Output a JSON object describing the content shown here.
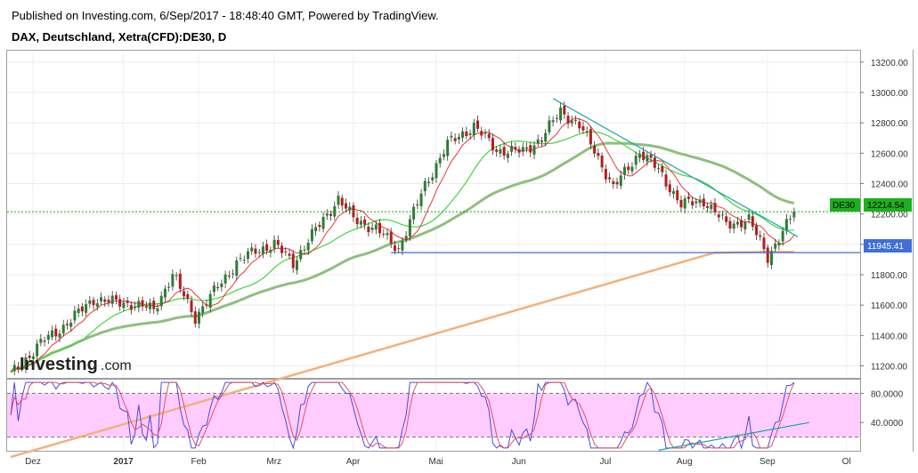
{
  "header": {
    "published": "Published on Investing.com, 6/Sep/2017 - 18:48:40 GMT, Powered by TradingView.",
    "symbol": "DAX, Deutschland, Xetra(CFD):DE30, D"
  },
  "watermark": {
    "brand": "Investing",
    "suffix": ".com"
  },
  "colors": {
    "up": "#2e7d32",
    "down": "#b71c1c",
    "sma_fast": "#e53935",
    "sma_mid": "#43d63f",
    "sma_slow": "#8fbf7f",
    "sma_long": "#f4b07a",
    "trendline": "#1ea4a4",
    "support": "#3f6fd8",
    "price_line": "#1a9e1a",
    "stoch_k": "#4b4bdc",
    "stoch_d": "#e0506a",
    "stoch_band": "#ffccff"
  },
  "price_labels": {
    "current_tag": "DE30",
    "current_value": "12214.54",
    "support_value": "11945.41"
  },
  "chart_data": [
    {
      "type": "line",
      "subtype": "candlestick",
      "title": "DAX, Deutschland, Xetra(CFD):DE30, D",
      "x_ticks": [
        "Dez",
        "2017",
        "Feb",
        "Mrz",
        "Apr",
        "Mai",
        "Jun",
        "Jul",
        "Aug",
        "Sep",
        "Ol"
      ],
      "y_ticks": [
        "13200.00",
        "13000.00",
        "12800.00",
        "12600.00",
        "12400.00",
        "12200.00",
        "12000.00",
        "11800.00",
        "11600.00",
        "11400.00",
        "11200.00"
      ],
      "ylim": [
        11080,
        13240
      ],
      "grid": true,
      "horizontal_lines": [
        {
          "value": 12214.54,
          "label": "DE30 12214.54",
          "style": "dotted"
        },
        {
          "value": 11945.41,
          "label": "11945.41",
          "style": "solid"
        }
      ],
      "trendline": [
        {
          "day": 144,
          "value": 12960
        },
        {
          "day": 209,
          "value": 12050
        }
      ],
      "support_start_day": 101,
      "series": []
    },
    {
      "type": "line",
      "title": "",
      "y_ticks": [
        "80.0000",
        "40.0000"
      ],
      "ylim": [
        0,
        100
      ],
      "band": [
        20,
        80
      ],
      "trendline": [
        {
          "day": 172,
          "value": 2
        },
        {
          "day": 212,
          "value": 40
        }
      ],
      "series": []
    }
  ]
}
